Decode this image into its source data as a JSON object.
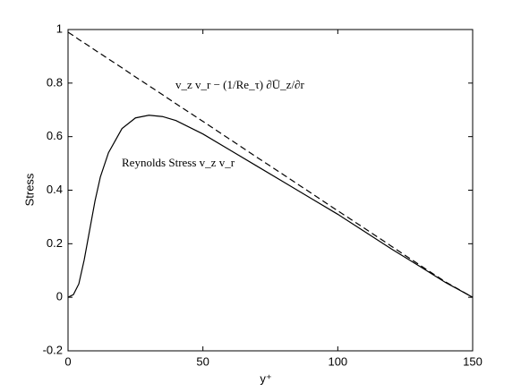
{
  "chart_data": {
    "type": "line",
    "x_label": "y⁺",
    "y_label": "Stress",
    "annotations": [
      "Reynolds Stress v_z v_r",
      "v_z v_r − (1/Re_τ) ∂Ū_z/∂r"
    ],
    "x": [
      0,
      2,
      4,
      6,
      8,
      10,
      12,
      15,
      20,
      25,
      30,
      35,
      40,
      50,
      60,
      70,
      80,
      90,
      100,
      110,
      120,
      130,
      140,
      150
    ],
    "series": [
      {
        "color": "#000000",
        "dash": "solid",
        "values": [
          0,
          0.01,
          0.05,
          0.14,
          0.25,
          0.36,
          0.45,
          0.54,
          0.63,
          0.67,
          0.68,
          0.675,
          0.66,
          0.61,
          0.55,
          0.49,
          0.43,
          0.37,
          0.31,
          0.245,
          0.18,
          0.118,
          0.055,
          0
        ]
      },
      {
        "color": "#000000",
        "dash": "dashed",
        "values": [
          0.99,
          0.977,
          0.963,
          0.95,
          0.937,
          0.923,
          0.91,
          0.89,
          0.857,
          0.823,
          0.79,
          0.757,
          0.723,
          0.657,
          0.59,
          0.523,
          0.457,
          0.39,
          0.323,
          0.257,
          0.19,
          0.123,
          0.057,
          0
        ]
      }
    ],
    "xlim": [
      0,
      150
    ],
    "xticks": [
      0,
      50,
      100,
      150
    ],
    "ylim": [
      -0.2,
      1
    ],
    "yticks": [
      -0.2,
      0,
      0.2,
      0.4,
      0.6,
      0.8,
      1
    ],
    "grid": false
  }
}
